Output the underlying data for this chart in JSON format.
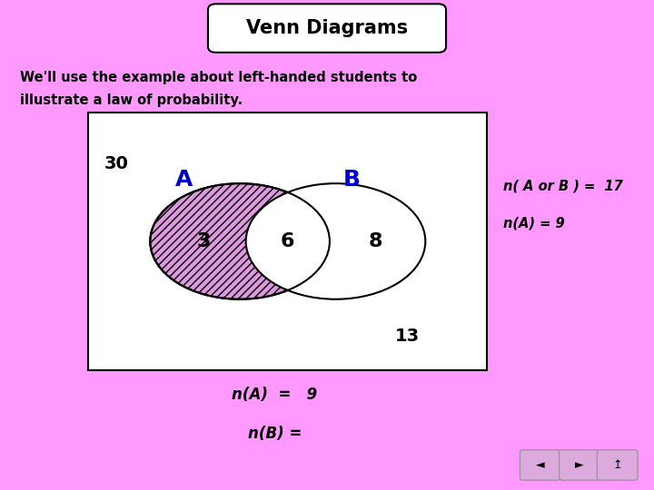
{
  "title": "Venn Diagrams",
  "background_color": "#FF99FF",
  "subtitle_line1": "We'll use the example about left-handed students to",
  "subtitle_line2": "illustrate a law of probability.",
  "label_A": "A",
  "label_B": "B",
  "value_left": "3",
  "value_middle": "6",
  "value_right": "8",
  "value_outside_left": "30",
  "value_outside_bottom": "13",
  "right_text_line1": "n( A or B ) =  17",
  "right_text_line2": "n(A) = 9",
  "bottom_text_line1": "n(A)  =   9",
  "bottom_text_line2": "n(B) =",
  "box_color": "#ffffff",
  "circle_A_fill": "#DD99DD",
  "label_color": "#0000CC",
  "text_color": "#000000",
  "title_box_color": "#ffffff",
  "nav_btn_color": "#DDAADD"
}
